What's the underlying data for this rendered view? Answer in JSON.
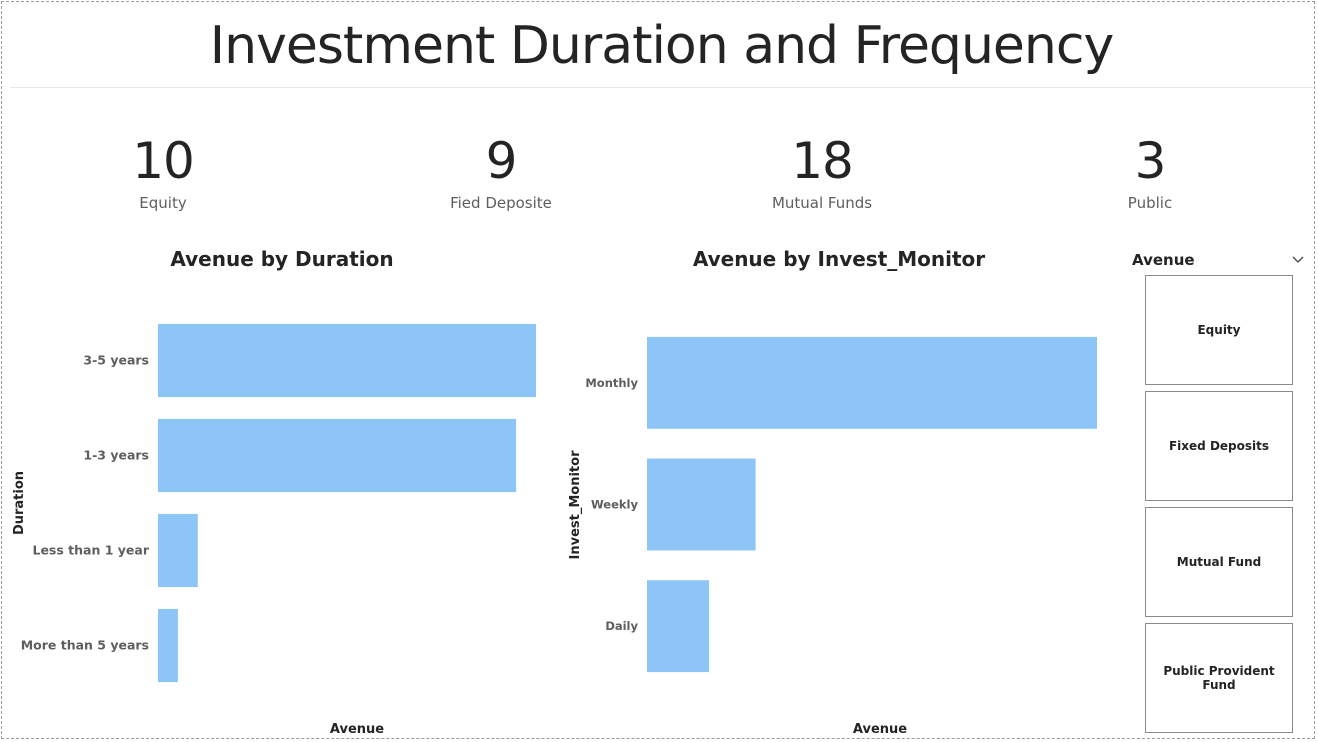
{
  "page": {
    "title": "Investment Duration and Frequency"
  },
  "kpis": [
    {
      "value": "10",
      "label": "Equity"
    },
    {
      "value": "9",
      "label": "Fied Deposite"
    },
    {
      "value": "18",
      "label": "Mutual Funds"
    },
    {
      "value": "3",
      "label": "Public"
    }
  ],
  "slicer": {
    "title": "Avenue",
    "items": [
      "Equity",
      "Fixed Deposits",
      "Mutual Fund",
      "Public Provident Fund"
    ]
  },
  "colors": {
    "bar": "#8dc6f6",
    "axis_text": "#605e5c",
    "title_text": "#252423"
  },
  "icons": {
    "slicer_toggle": "chevron-down-icon"
  },
  "chart_data": [
    {
      "type": "bar",
      "orientation": "horizontal",
      "title": "Avenue by Duration",
      "xlabel": "Avenue",
      "ylabel": "Duration",
      "categories": [
        "3-5 years",
        "1-3 years",
        "Less than 1 year",
        "More than 5 years"
      ],
      "values": [
        19,
        18,
        2,
        1
      ],
      "xlim": [
        0,
        19
      ],
      "grid": false,
      "legend": "none"
    },
    {
      "type": "bar",
      "orientation": "horizontal",
      "title": "Avenue by Invest_Monitor",
      "xlabel": "Avenue",
      "ylabel": "Invest_Monitor",
      "categories": [
        "Monthly",
        "Weekly",
        "Daily"
      ],
      "values": [
        29,
        7,
        4
      ],
      "xlim": [
        0,
        29
      ],
      "grid": false,
      "legend": "none"
    }
  ]
}
